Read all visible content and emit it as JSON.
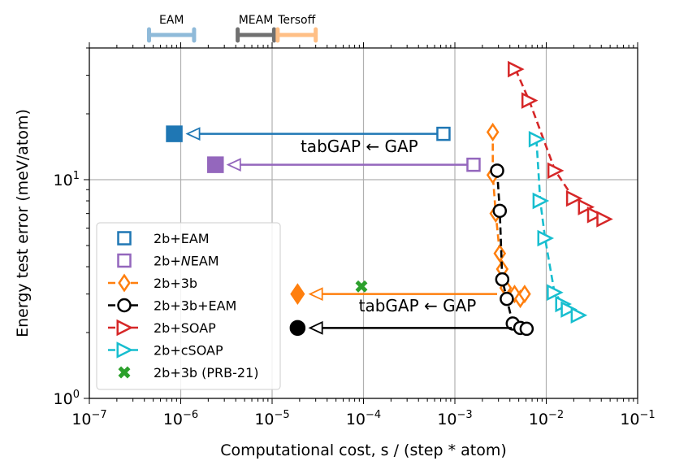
{
  "chart_data": {
    "type": "scatter",
    "xscale": "log",
    "yscale": "log",
    "xlim": [
      1e-07,
      0.1
    ],
    "ylim": [
      1,
      40
    ],
    "grid": true,
    "xlabel": "Computational cost, s / (step * atom)",
    "ylabel": "Energy test error (meV/atom)",
    "x_ticks": [
      {
        "value": 1e-07,
        "base": "10",
        "exp": "−7"
      },
      {
        "value": 1e-06,
        "base": "10",
        "exp": "−6"
      },
      {
        "value": 1e-05,
        "base": "10",
        "exp": "−5"
      },
      {
        "value": 0.0001,
        "base": "10",
        "exp": "−4"
      },
      {
        "value": 0.001,
        "base": "10",
        "exp": "−3"
      },
      {
        "value": 0.01,
        "base": "10",
        "exp": "−2"
      },
      {
        "value": 0.1,
        "base": "10",
        "exp": "−1"
      }
    ],
    "y_ticks": [
      {
        "value": 1,
        "base": "10",
        "exp": "0"
      },
      {
        "value": 10,
        "base": "10",
        "exp": "1"
      }
    ],
    "series": [
      {
        "name": "2b+EAM",
        "label_main": "2b+EAM",
        "label_italic": "",
        "label_rest": "",
        "color": "#1f77b4",
        "marker": "square",
        "linestyle": "none",
        "x": [
          0.00075
        ],
        "y": [
          16.2
        ]
      },
      {
        "name": "2b+NEAM",
        "label_main": "2b+",
        "label_italic": "N",
        "label_rest": "EAM",
        "color": "#9467bd",
        "marker": "square",
        "linestyle": "none",
        "x": [
          0.0016
        ],
        "y": [
          11.7
        ]
      },
      {
        "name": "2b+3b",
        "label_main": "2b+3b",
        "label_italic": "",
        "label_rest": "",
        "color": "#ff7f0e",
        "marker": "diamond",
        "linestyle": "dashed",
        "x": [
          0.0026,
          0.0026,
          0.0028,
          0.0031,
          0.0033,
          0.0036,
          0.0045,
          0.0052,
          0.0058
        ],
        "y": [
          16.5,
          10.5,
          7.0,
          4.6,
          3.9,
          3.2,
          3.0,
          2.85,
          3.0
        ]
      },
      {
        "name": "2b+3b+EAM",
        "label_main": "2b+3b+EAM",
        "label_italic": "",
        "label_rest": "",
        "color": "#000000",
        "marker": "circle",
        "linestyle": "dashed",
        "x": [
          0.0029,
          0.0031,
          0.0033,
          0.0037,
          0.0043,
          0.0052,
          0.0061
        ],
        "y": [
          11.0,
          7.2,
          3.5,
          2.85,
          2.2,
          2.1,
          2.08
        ]
      },
      {
        "name": "2b+SOAP",
        "label_main": "2b+SOAP",
        "label_italic": "",
        "label_rest": "",
        "color": "#d62728",
        "marker": "triangle-right",
        "linestyle": "dashed",
        "x": [
          0.0046,
          0.0065,
          0.0125,
          0.02,
          0.027,
          0.034,
          0.043
        ],
        "y": [
          32.0,
          23.0,
          11.0,
          8.2,
          7.5,
          6.9,
          6.6
        ]
      },
      {
        "name": "2b+cSOAP",
        "label_main": "2b+cSOAP",
        "label_italic": "",
        "label_rest": "",
        "color": "#17becf",
        "marker": "triangle-right",
        "linestyle": "dashed",
        "x": [
          0.0078,
          0.0086,
          0.0097,
          0.0123,
          0.0152,
          0.0175,
          0.0225
        ],
        "y": [
          15.3,
          8.0,
          5.4,
          3.05,
          2.7,
          2.55,
          2.4
        ]
      },
      {
        "name": "2b+3b (PRB-21)",
        "label_main": "2b+3b (PRB-21)",
        "label_italic": "",
        "label_rest": "",
        "color": "#2ca02c",
        "marker": "x",
        "linestyle": "none",
        "x": [
          9.5e-05
        ],
        "y": [
          3.25
        ]
      }
    ],
    "tabgap_points": [
      {
        "name": "2b+EAM tabGAP",
        "color": "#1f77b4",
        "marker": "square",
        "x": 8.5e-07,
        "y": 16.2
      },
      {
        "name": "2b+NEAM tabGAP",
        "color": "#9467bd",
        "marker": "square",
        "x": 2.4e-06,
        "y": 11.7
      },
      {
        "name": "2b+3b tabGAP",
        "color": "#ff7f0e",
        "marker": "diamond",
        "x": 1.9e-05,
        "y": 3.0
      },
      {
        "name": "2b+3b+EAM tabGAP",
        "color": "#000000",
        "marker": "circle",
        "x": 1.9e-05,
        "y": 2.1
      }
    ],
    "arrows": [
      {
        "color": "#1f77b4",
        "x_from": 0.00065,
        "x_to": 1.18e-06,
        "y": 16.2
      },
      {
        "color": "#9467bd",
        "x_from": 0.0014,
        "x_to": 3.3e-06,
        "y": 11.7
      },
      {
        "color": "#ff7f0e",
        "x_from": 0.0029,
        "x_to": 2.6e-05,
        "y": 3.0
      },
      {
        "color": "#000000",
        "x_from": 0.0042,
        "x_to": 2.6e-05,
        "y": 2.1
      }
    ],
    "annotations": [
      {
        "text": "tabGAP ← GAP",
        "x": 9e-05,
        "y": 13.4
      },
      {
        "text": "tabGAP ← GAP",
        "x": 0.00039,
        "y": 2.5
      }
    ],
    "ranges": [
      {
        "label": "EAM",
        "color": "#8fbad9",
        "x_min": 4.5e-07,
        "x_max": 1.4e-06
      },
      {
        "label": "MEAM",
        "color": "#707070",
        "x_min": 4.2e-06,
        "x_max": 1.05e-05
      },
      {
        "label": "Tersoff",
        "color": "#ffbf86",
        "x_min": 1.15e-05,
        "x_max": 3e-05
      }
    ],
    "legend_position": "lower-left"
  }
}
